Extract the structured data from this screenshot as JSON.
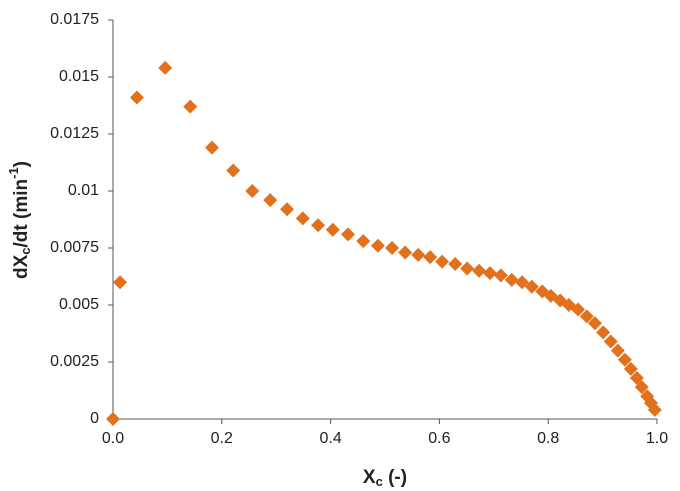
{
  "chart_data": {
    "type": "scatter",
    "x_label": [
      "X",
      "c",
      " (-)"
    ],
    "y_label": [
      "dX",
      "c",
      "/dt (min",
      "-1",
      ")"
    ],
    "color": "#e2711d",
    "marker": "diamond",
    "grid": false,
    "xlim": [
      0,
      1
    ],
    "ylim": [
      0,
      0.0175
    ],
    "xticks": [
      {
        "value": 0,
        "label": "0.0"
      },
      {
        "value": 0.2,
        "label": "0.2"
      },
      {
        "value": 0.4,
        "label": "0.4"
      },
      {
        "value": 0.6,
        "label": "0.6"
      },
      {
        "value": 0.8,
        "label": "0.8"
      },
      {
        "value": 1,
        "label": "1.0"
      }
    ],
    "yticks": [
      0,
      0.0025,
      0.005,
      0.0075,
      0.01,
      0.0125,
      0.015,
      0.0175
    ],
    "x": [
      0,
      0.013,
      0.044,
      0.096,
      0.142,
      0.182,
      0.221,
      0.256,
      0.289,
      0.32,
      0.349,
      0.377,
      0.404,
      0.432,
      0.46,
      0.487,
      0.513,
      0.537,
      0.561,
      0.583,
      0.605,
      0.629,
      0.651,
      0.673,
      0.693,
      0.713,
      0.733,
      0.752,
      0.77,
      0.789,
      0.805,
      0.822,
      0.838,
      0.855,
      0.871,
      0.886,
      0.901,
      0.915,
      0.928,
      0.941,
      0.952,
      0.963,
      0.972,
      0.982,
      0.989,
      0.996
    ],
    "values": [
      0,
      0.006,
      0.0141,
      0.0154,
      0.0137,
      0.0119,
      0.0109,
      0.01,
      0.0096,
      0.0092,
      0.0088,
      0.0085,
      0.0083,
      0.0081,
      0.0078,
      0.0076,
      0.0075,
      0.0073,
      0.0072,
      0.0071,
      0.0069,
      0.0068,
      0.0066,
      0.0065,
      0.0064,
      0.0063,
      0.0061,
      0.006,
      0.0058,
      0.0056,
      0.0054,
      0.0052,
      0.005,
      0.0048,
      0.0045,
      0.0042,
      0.0038,
      0.0034,
      0.003,
      0.0026,
      0.0022,
      0.0018,
      0.0014,
      0.001,
      0.0007,
      0.0004
    ]
  }
}
